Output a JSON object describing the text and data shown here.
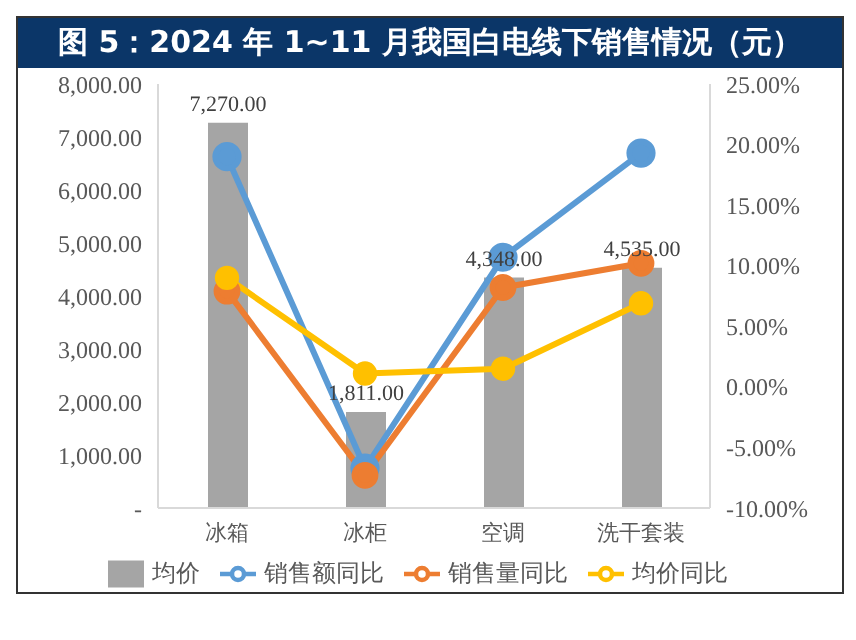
{
  "chart_data": {
    "type": "bar",
    "title": "图 5：2024 年 1~11 月我国白电线下销售情况（元）",
    "categories": [
      "冰箱",
      "冰柜",
      "空调",
      "洗干套装"
    ],
    "series": [
      {
        "name": "均价",
        "color": "#a5a5a5",
        "values": [
          7270,
          1811,
          4348,
          4535
        ],
        "value_labels": [
          "7,270.00",
          "1,811.00",
          "4,348.00",
          "4,535.00"
        ]
      },
      {
        "name": "销售额同比",
        "type": "line",
        "axis": "y2",
        "color": "#5b9bd5",
        "values": [
          19.0,
          -6.7,
          10.7,
          19.3
        ]
      },
      {
        "name": "销售量同比",
        "type": "line",
        "axis": "y2",
        "color": "#ed7d31",
        "values": [
          7.9,
          -7.3,
          8.2,
          10.2
        ]
      },
      {
        "name": "均价同比",
        "type": "line",
        "axis": "y2",
        "color": "#ffc000",
        "values": [
          9.0,
          1.1,
          1.5,
          6.9
        ]
      }
    ],
    "ylim": [
      0,
      8000
    ],
    "yticks": [
      {
        "value": 0,
        "label": "-"
      },
      {
        "value": 1000,
        "label": "1,000.00"
      },
      {
        "value": 2000,
        "label": "2,000.00"
      },
      {
        "value": 3000,
        "label": "3,000.00"
      },
      {
        "value": 4000,
        "label": "4,000.00"
      },
      {
        "value": 5000,
        "label": "5,000.00"
      },
      {
        "value": 6000,
        "label": "6,000.00"
      },
      {
        "value": 7000,
        "label": "7,000.00"
      },
      {
        "value": 8000,
        "label": "8,000.00"
      }
    ],
    "y2lim": [
      -10,
      25
    ],
    "y2ticks": [
      {
        "value": -10,
        "label": "-10.00%"
      },
      {
        "value": -5,
        "label": "-5.00%"
      },
      {
        "value": 0,
        "label": "0.00%"
      },
      {
        "value": 5,
        "label": "5.00%"
      },
      {
        "value": 10,
        "label": "10.00%"
      },
      {
        "value": 15,
        "label": "15.00%"
      },
      {
        "value": 20,
        "label": "20.00%"
      },
      {
        "value": 25,
        "label": "25.00%"
      }
    ],
    "legend": "bottom",
    "marker": "circle",
    "line_style": "solid"
  }
}
